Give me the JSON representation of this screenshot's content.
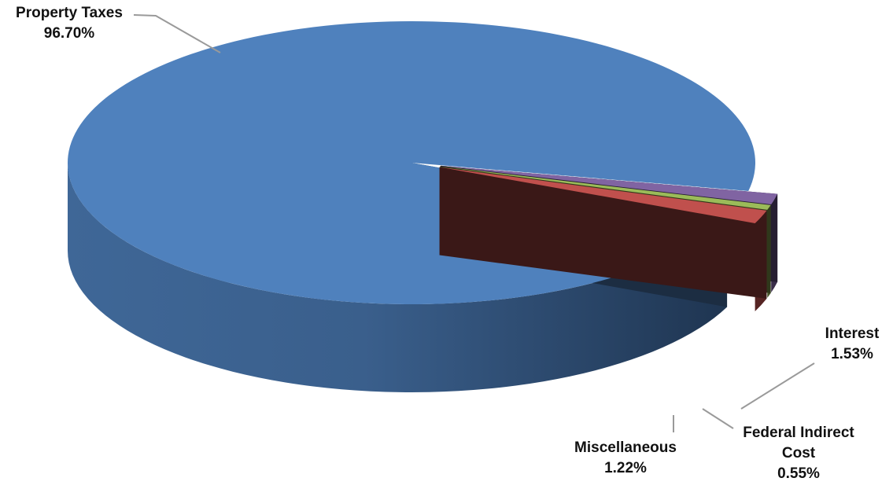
{
  "chart_data": {
    "type": "pie",
    "title": "",
    "legend": "none",
    "three_d": true,
    "slices": [
      {
        "label": "Property Taxes",
        "value": 96.7,
        "value_label": "96.70%",
        "color": "#4f81bd"
      },
      {
        "label": "Miscellaneous",
        "value": 1.22,
        "value_label": "1.22%",
        "color": "#8064a2"
      },
      {
        "label": "Federal Indirect Cost",
        "value": 0.55,
        "value_label": "0.55%",
        "color": "#9bbb59"
      },
      {
        "label": "Interest",
        "value": 1.53,
        "value_label": "1.53%",
        "color": "#c0504d"
      }
    ]
  }
}
